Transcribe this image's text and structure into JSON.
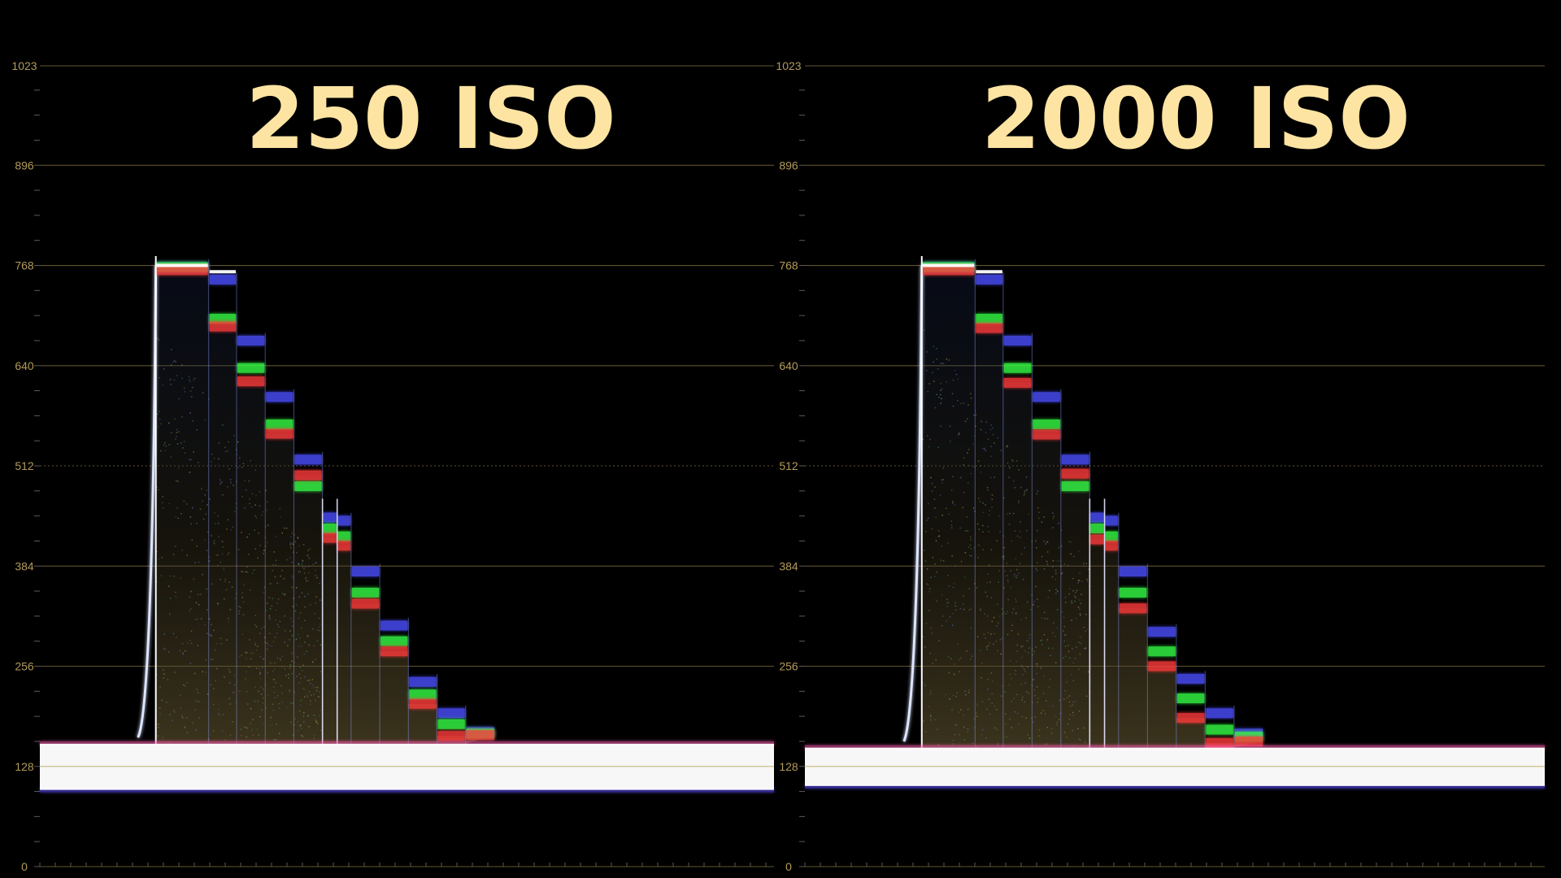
{
  "colors": {
    "background": "#000000",
    "grid": "#6b5d34",
    "tick_label": "#b39a5a",
    "title": "#fde4a2",
    "red": "#ff3b3b",
    "green": "#34ff44",
    "blue": "#4b50ff",
    "luma": "#ffffff"
  },
  "chart_data": [
    {
      "type": "waveform",
      "title": "250 ISO",
      "ylim": [
        0,
        1023
      ],
      "ytick_labels": [
        "1023",
        "896",
        "768",
        "640",
        "512",
        "384",
        "256",
        "128",
        "0"
      ],
      "yticks": [
        1023,
        896,
        768,
        640,
        512,
        384,
        256,
        128,
        0
      ],
      "grid": true,
      "noise_floor": {
        "center": 128,
        "top": 157,
        "bottom": 98
      },
      "steps": [
        {
          "x": [
            0.158,
            0.23
          ],
          "red": 762,
          "green": 766,
          "blue": 766,
          "luma": 768
        },
        {
          "x": [
            0.23,
            0.268
          ],
          "red": 690,
          "green": 700,
          "blue": 750,
          "luma": 760
        },
        {
          "x": [
            0.268,
            0.307
          ],
          "red": 620,
          "green": 637,
          "blue": 672
        },
        {
          "x": [
            0.307,
            0.346
          ],
          "red": 553,
          "green": 565,
          "blue": 600
        },
        {
          "x": [
            0.346,
            0.385
          ],
          "red": 500,
          "green": 486,
          "blue": 520
        },
        {
          "x": [
            0.385,
            0.405
          ],
          "red": 420,
          "green": 432,
          "blue": 446
        },
        {
          "x": [
            0.405,
            0.424
          ],
          "red": 410,
          "green": 422,
          "blue": 442
        },
        {
          "x": [
            0.424,
            0.463
          ],
          "red": 336,
          "green": 350,
          "blue": 377
        },
        {
          "x": [
            0.463,
            0.502
          ],
          "red": 275,
          "green": 288,
          "blue": 308
        },
        {
          "x": [
            0.502,
            0.541
          ],
          "red": 208,
          "green": 220,
          "blue": 236
        },
        {
          "x": [
            0.541,
            0.58
          ],
          "red": 167,
          "green": 182,
          "blue": 196
        },
        {
          "x": [
            0.58,
            0.62
          ],
          "red": 168,
          "green": 170,
          "blue": 172
        }
      ]
    },
    {
      "type": "waveform",
      "title": "2000 ISO",
      "ylim": [
        0,
        1023
      ],
      "ytick_labels": [
        "1023",
        "896",
        "768",
        "640",
        "512",
        "384",
        "256",
        "128",
        "0"
      ],
      "yticks": [
        1023,
        896,
        768,
        640,
        512,
        384,
        256,
        128,
        0
      ],
      "grid": true,
      "noise_floor": {
        "center": 128,
        "top": 152,
        "bottom": 103
      },
      "steps": [
        {
          "x": [
            0.158,
            0.23
          ],
          "red": 762,
          "green": 766,
          "blue": 766,
          "luma": 768
        },
        {
          "x": [
            0.23,
            0.268
          ],
          "red": 688,
          "green": 700,
          "blue": 750,
          "luma": 760
        },
        {
          "x": [
            0.268,
            0.307
          ],
          "red": 618,
          "green": 637,
          "blue": 672
        },
        {
          "x": [
            0.307,
            0.346
          ],
          "red": 552,
          "green": 565,
          "blue": 600
        },
        {
          "x": [
            0.346,
            0.385
          ],
          "red": 502,
          "green": 486,
          "blue": 520
        },
        {
          "x": [
            0.385,
            0.405
          ],
          "red": 418,
          "green": 432,
          "blue": 446
        },
        {
          "x": [
            0.405,
            0.424
          ],
          "red": 410,
          "green": 422,
          "blue": 442
        },
        {
          "x": [
            0.424,
            0.463
          ],
          "red": 330,
          "green": 350,
          "blue": 377
        },
        {
          "x": [
            0.463,
            0.502
          ],
          "red": 256,
          "green": 275,
          "blue": 300
        },
        {
          "x": [
            0.502,
            0.541
          ],
          "red": 190,
          "green": 215,
          "blue": 240
        },
        {
          "x": [
            0.541,
            0.58
          ],
          "red": 158,
          "green": 175,
          "blue": 196
        },
        {
          "x": [
            0.58,
            0.62
          ],
          "red": 160,
          "green": 166,
          "blue": 170
        }
      ]
    }
  ]
}
